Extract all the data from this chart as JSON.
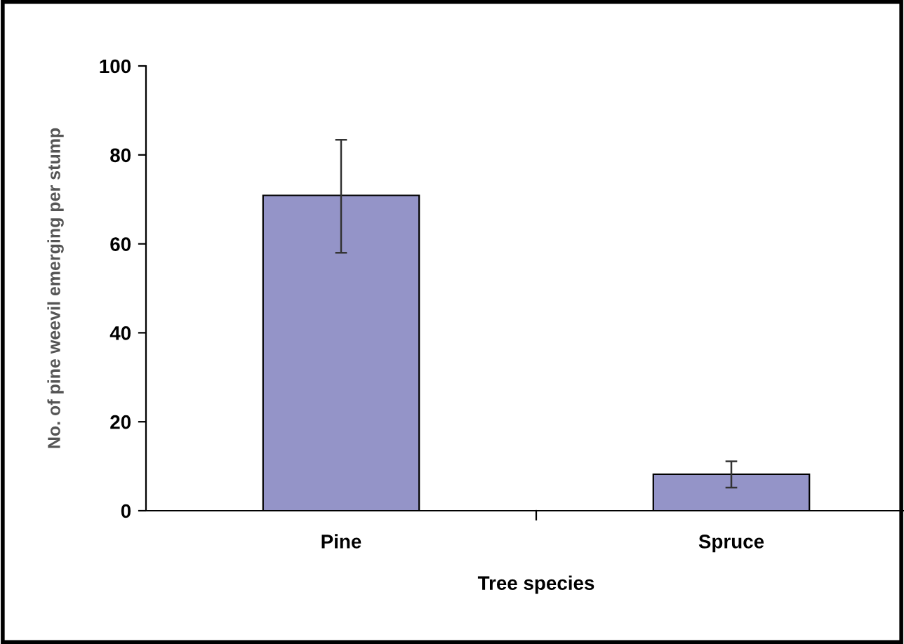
{
  "chart_data": {
    "type": "bar",
    "xlabel": "Tree species",
    "ylabel": "No. of pine weevil emerging per stump",
    "categories": [
      "Pine",
      "Spruce"
    ],
    "values": [
      70.9,
      8.2
    ],
    "errors": [
      [
        58.0,
        83.4
      ],
      [
        5.2,
        11.1
      ]
    ],
    "color": "#9494c8",
    "ylim": [
      0,
      100
    ],
    "yticks": [
      0,
      20,
      40,
      60,
      80,
      100
    ],
    "grid": false,
    "legend": false
  }
}
